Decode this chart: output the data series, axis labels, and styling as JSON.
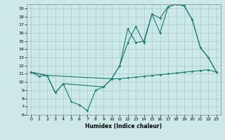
{
  "title": "",
  "xlabel": "Humidex (Indice chaleur)",
  "background_color": "#cce8e8",
  "grid_color": "#aacccc",
  "line_color": "#1a7a6e",
  "xlim": [
    -0.5,
    23.5
  ],
  "ylim": [
    6,
    19.5
  ],
  "xticks": [
    0,
    1,
    2,
    3,
    4,
    5,
    6,
    7,
    8,
    9,
    10,
    11,
    12,
    13,
    14,
    15,
    16,
    17,
    18,
    19,
    20,
    21,
    22,
    23
  ],
  "yticks": [
    6,
    7,
    8,
    9,
    10,
    11,
    12,
    13,
    14,
    15,
    16,
    17,
    18,
    19
  ],
  "line1_x": [
    0,
    1,
    2,
    10,
    11,
    12,
    13,
    14,
    15,
    16,
    17,
    18,
    19,
    20,
    21,
    22,
    23
  ],
  "line1_y": [
    11.2,
    10.7,
    10.8,
    10.4,
    10.4,
    10.5,
    10.6,
    10.7,
    10.8,
    10.9,
    11.0,
    11.1,
    11.2,
    11.3,
    11.4,
    11.5,
    11.2
  ],
  "line2_x": [
    0,
    2,
    3,
    4,
    5,
    6,
    7,
    8,
    9,
    10,
    11,
    12,
    13,
    14,
    15,
    16,
    17,
    18,
    19,
    20,
    21,
    22,
    23
  ],
  "line2_y": [
    11.2,
    10.8,
    8.7,
    9.8,
    7.6,
    7.2,
    6.5,
    9.0,
    9.4,
    10.4,
    12.0,
    16.5,
    14.8,
    15.0,
    18.3,
    17.8,
    19.2,
    19.5,
    19.3,
    17.6,
    14.2,
    13.0,
    11.2
  ],
  "line3_x": [
    0,
    2,
    3,
    4,
    9,
    10,
    11,
    12,
    13,
    14,
    15,
    16,
    17,
    18,
    19,
    20,
    21,
    22,
    23
  ],
  "line3_y": [
    11.2,
    10.8,
    8.7,
    9.8,
    9.4,
    10.4,
    12.0,
    14.8,
    16.8,
    14.8,
    18.3,
    16.0,
    19.2,
    19.5,
    19.3,
    17.6,
    14.2,
    13.0,
    11.2
  ]
}
